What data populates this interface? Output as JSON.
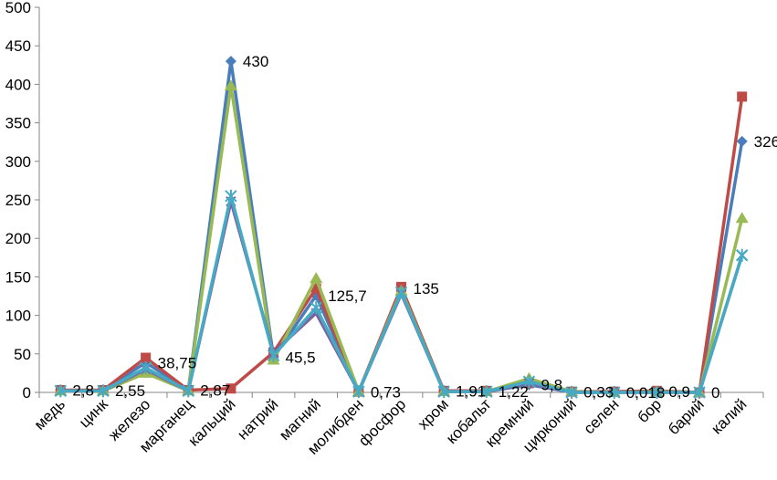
{
  "chart_data": {
    "type": "line",
    "title": "",
    "xlabel": "",
    "ylabel": "",
    "ylim": [
      0,
      500
    ],
    "yticks": [
      "0",
      "50",
      "100",
      "150",
      "200",
      "250",
      "300",
      "350",
      "400",
      "450",
      "500"
    ],
    "categories": [
      "медь",
      "цинк",
      "железо",
      "марганец",
      "кальций",
      "натрий",
      "магний",
      "молибден",
      "фосфор",
      "хром",
      "кобальт",
      "кремний",
      "цирконий",
      "селен",
      "бор",
      "барий",
      "калий"
    ],
    "series": [
      {
        "color": "#4a7ebb",
        "marker": "diamond",
        "values": [
          2.8,
          2.55,
          38.75,
          2.87,
          430,
          45.5,
          125.7,
          0.73,
          135,
          1.91,
          1.22,
          9.8,
          0.33,
          0.018,
          0.9,
          0,
          326
        ]
      },
      {
        "color": "#be4b48",
        "marker": "square",
        "values": [
          3,
          3,
          45,
          3,
          5,
          52,
          135,
          1,
          137,
          2,
          2,
          12,
          1,
          1,
          2,
          0,
          384
        ]
      },
      {
        "color": "#98b954",
        "marker": "triangle",
        "values": [
          2,
          2,
          25,
          2,
          398,
          42,
          148,
          1,
          132,
          1,
          1,
          18,
          1,
          0,
          1,
          0,
          226
        ]
      },
      {
        "color": "#7d60a0",
        "marker": "x",
        "values": [
          2,
          2,
          30,
          2,
          248,
          52,
          103,
          1,
          128,
          1,
          1,
          12,
          0,
          0,
          0,
          0,
          178
        ]
      },
      {
        "color": "#46aac5",
        "marker": "star",
        "values": [
          2,
          2,
          32,
          2,
          255,
          48,
          110,
          1,
          130,
          1,
          1,
          14,
          0,
          0,
          0,
          0,
          178
        ]
      }
    ],
    "data_labels": [
      "2,8",
      "2,55",
      "38,75",
      "2,87",
      "430",
      "45,5",
      "125,7",
      "0,73",
      "135",
      "1,91",
      "1,22",
      "9,8",
      "0,33",
      "0,018",
      "0,9",
      "0",
      "326"
    ],
    "grid": false,
    "legend": "none"
  }
}
